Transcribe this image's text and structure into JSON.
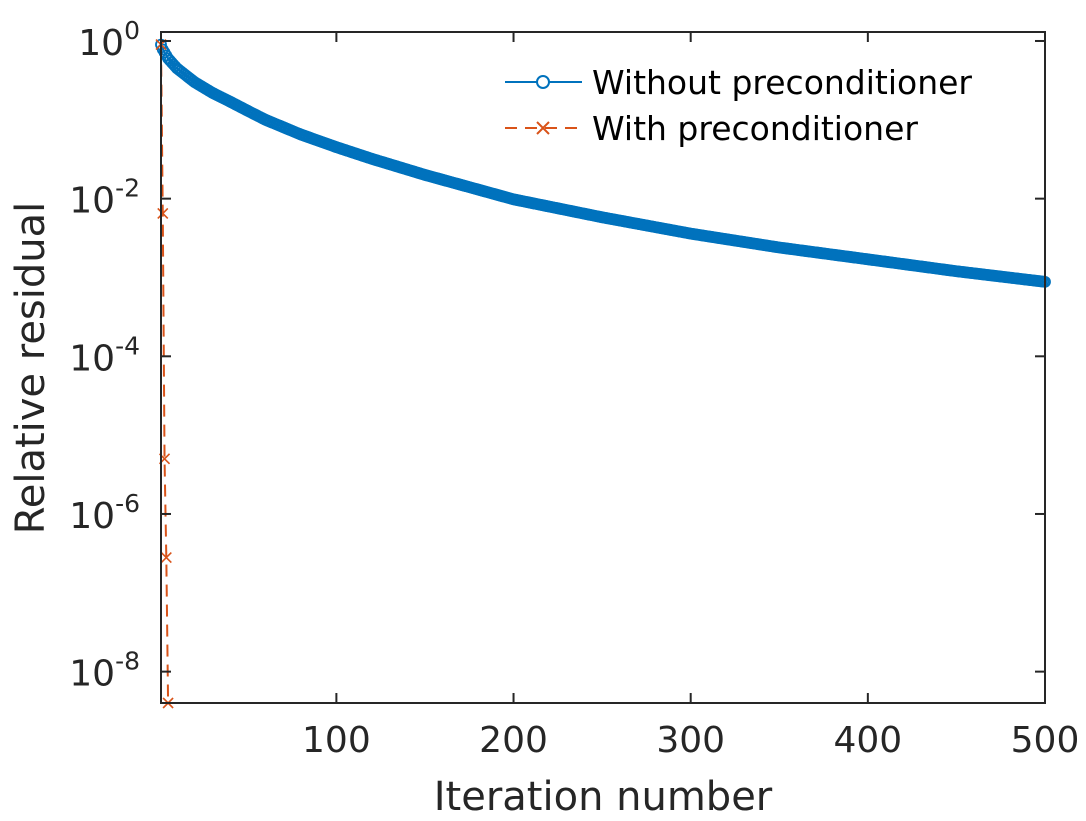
{
  "chart_data": {
    "type": "line",
    "title": "",
    "xlabel": "Iteration number",
    "ylabel": "Relative residual",
    "xscale": "linear",
    "yscale": "log",
    "xlim": [
      1,
      500
    ],
    "ylim": [
      4e-09,
      1.3
    ],
    "xticks": [
      100,
      200,
      300,
      400,
      500
    ],
    "xtick_labels": [
      "100",
      "200",
      "300",
      "400",
      "500"
    ],
    "yticks": [
      1e-08,
      1e-06,
      0.0001,
      0.01,
      1
    ],
    "ytick_labels": [
      {
        "base": "10",
        "exp": "-8"
      },
      {
        "base": "10",
        "exp": "-6"
      },
      {
        "base": "10",
        "exp": "-4"
      },
      {
        "base": "10",
        "exp": "-2"
      },
      {
        "base": "10",
        "exp": "0"
      }
    ],
    "legend_position": "top-right",
    "series": [
      {
        "name": "Without preconditioner",
        "color": "#0072BD",
        "marker": "o",
        "line": "solid",
        "x": [
          1,
          2,
          5,
          10,
          20,
          30,
          40,
          50,
          60,
          80,
          100,
          120,
          150,
          200,
          250,
          300,
          350,
          400,
          450,
          500
        ],
        "y": [
          0.9,
          0.78,
          0.6,
          0.45,
          0.3,
          0.22,
          0.17,
          0.13,
          0.1,
          0.065,
          0.045,
          0.032,
          0.02,
          0.0098,
          0.0058,
          0.0036,
          0.0024,
          0.0017,
          0.0012,
          0.00088
        ]
      },
      {
        "name": "With preconditioner",
        "color": "#D95319",
        "marker": "x",
        "line": "dashed",
        "x": [
          1,
          2,
          3,
          4,
          5
        ],
        "y": [
          0.9,
          0.0065,
          5e-06,
          2.8e-07,
          4e-09
        ]
      }
    ]
  }
}
